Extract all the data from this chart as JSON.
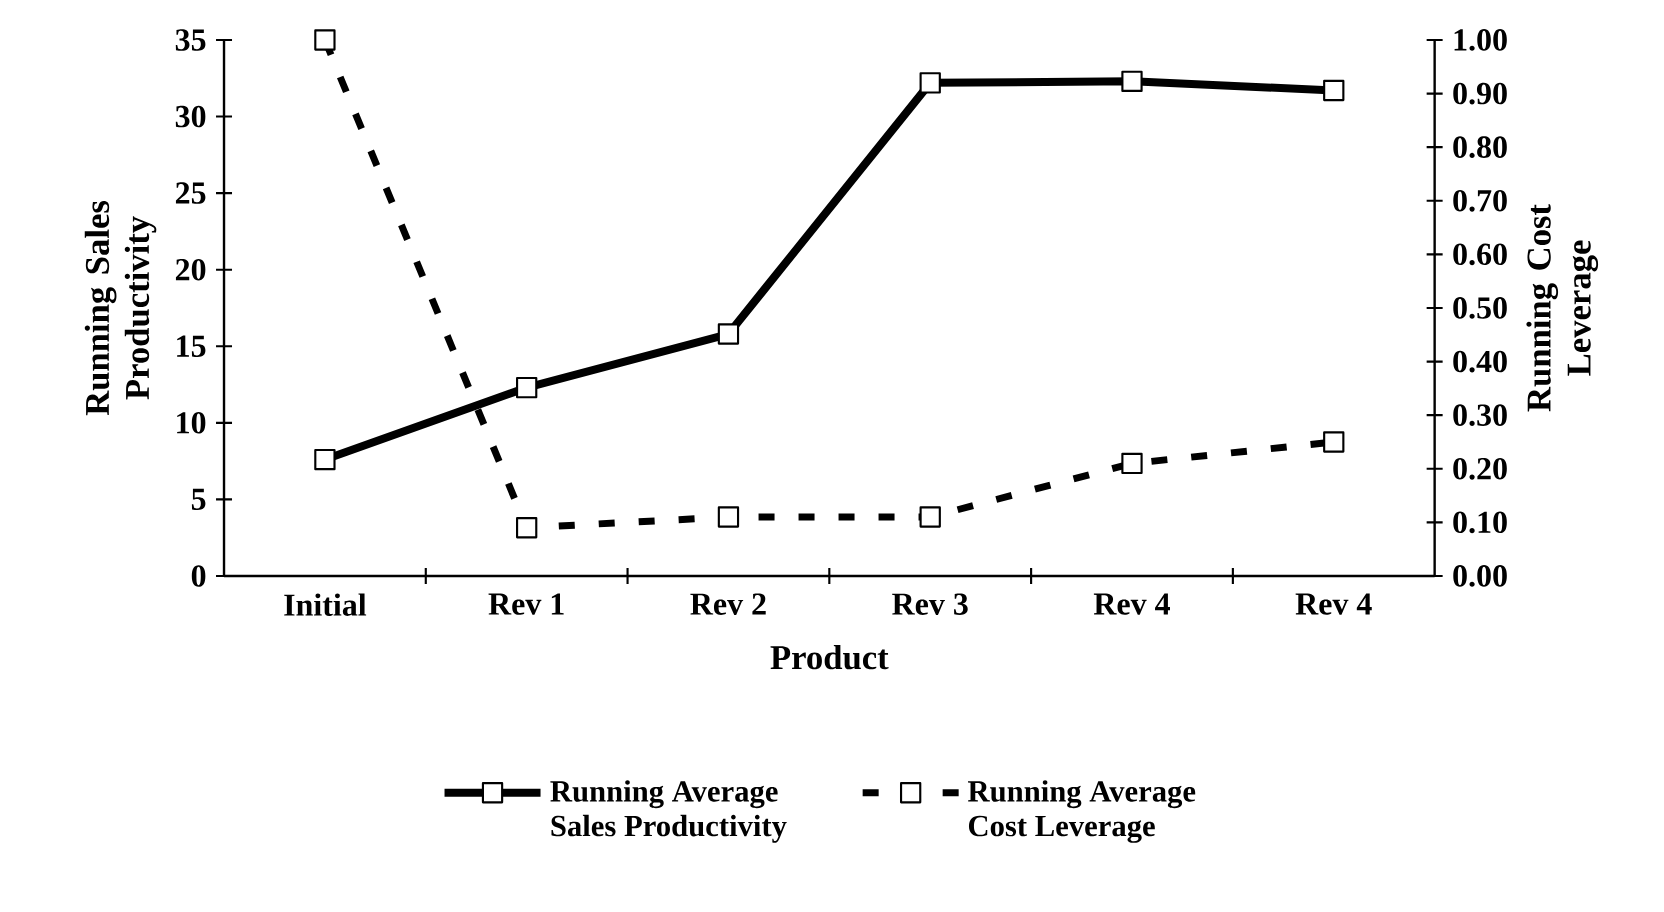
{
  "chart_data": {
    "type": "line",
    "xlabel": "Product",
    "ylabel": "Running Sales Productivity",
    "y2label": "Running Cost Leverage",
    "categories": [
      "Initial",
      "Rev 1",
      "Rev 2",
      "Rev 3",
      "Rev 4",
      "Rev 4"
    ],
    "series": [
      {
        "name": "Running Average Sales Productivity",
        "color": "#000000",
        "line_style": "solid",
        "values": [
          7.6,
          12.3,
          15.8,
          32.2,
          32.3,
          31.7
        ]
      },
      {
        "name": "Running Average Cost Leverage",
        "color": "#000000",
        "line_style": "dashed",
        "axis": "y2",
        "values": [
          1.0,
          0.09,
          0.11,
          0.11,
          0.21,
          0.25
        ]
      }
    ],
    "ylim": [
      0,
      35
    ],
    "yticks": [
      0,
      5,
      10,
      15,
      20,
      25,
      30,
      35
    ],
    "y2lim": [
      0,
      1
    ],
    "y2ticks": [
      {
        "value": 0,
        "label": "0.00"
      },
      {
        "value": 0.1,
        "label": "0.10"
      },
      {
        "value": 0.2,
        "label": "0.20"
      },
      {
        "value": 0.3,
        "label": "0.30"
      },
      {
        "value": 0.4,
        "label": "0.40"
      },
      {
        "value": 0.5,
        "label": "0.50"
      },
      {
        "value": 0.6,
        "label": "0.60"
      },
      {
        "value": 0.7,
        "label": "0.70"
      },
      {
        "value": 0.8,
        "label": "0.80"
      },
      {
        "value": 0.9,
        "label": "0.90"
      },
      {
        "value": 1.0,
        "label": "1.00"
      }
    ],
    "marker": "square",
    "legend": "bottom",
    "grid": false
  }
}
